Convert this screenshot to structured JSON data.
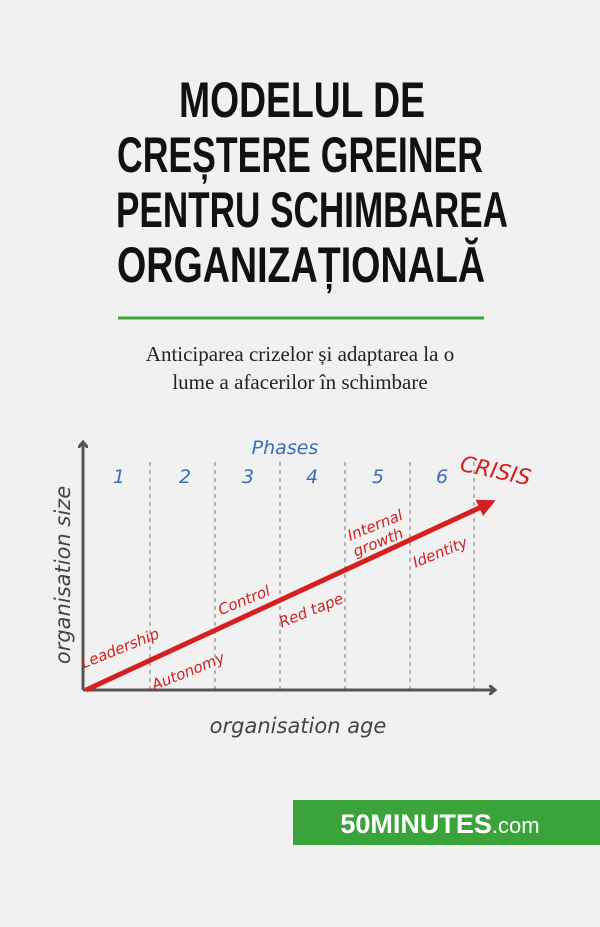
{
  "title": {
    "lines": [
      "MODELUL DE",
      "CREȘTERE GREINER",
      "PENTRU SCHIMBAREA",
      "ORGANIZAȚIONALĂ"
    ]
  },
  "subtitle": {
    "lines": [
      "Anticiparea crizelor și adaptarea la o",
      "lume a afacerilor în schimbare"
    ]
  },
  "diagram": {
    "phases_label": "Phases",
    "phase_numbers": [
      "1",
      "2",
      "3",
      "4",
      "5",
      "6"
    ],
    "crisis": "CRISIS",
    "labels": [
      "Leadership",
      "Autonomy",
      "Control",
      "Red tape",
      "Internal",
      "growth",
      "Identity"
    ],
    "y_axis_label": "organisation size",
    "x_axis_label": "organisation age"
  },
  "brand": {
    "name": "50MINUTES",
    "suffix": ".com"
  }
}
